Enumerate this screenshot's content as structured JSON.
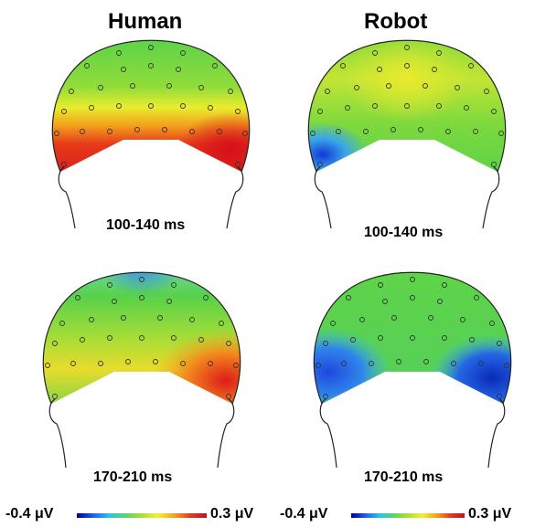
{
  "columns": [
    {
      "title": "Human"
    },
    {
      "title": "Robot"
    }
  ],
  "panels": [
    {
      "condition": "Human",
      "time_window": "100-140 ms",
      "pattern": "posterior-positive"
    },
    {
      "condition": "Robot",
      "time_window": "100-140 ms",
      "pattern": "left-negative"
    },
    {
      "condition": "Human",
      "time_window": "170-210 ms",
      "pattern": "right-positive-top-negative"
    },
    {
      "condition": "Robot",
      "time_window": "170-210 ms",
      "pattern": "bilateral-negative"
    }
  ],
  "colorbar": {
    "min_label": "-0.4 μV",
    "max_label": "0.3 μV",
    "colors": [
      "#00008b",
      "#1e5bff",
      "#21c7e8",
      "#56d66a",
      "#a9e033",
      "#f4f030",
      "#f6a21c",
      "#e8391b",
      "#c8101a"
    ]
  },
  "colors": {
    "green": "#57d24a",
    "yellow": "#f1ee2c",
    "orange": "#f38d1c",
    "red": "#e1221c",
    "blue": "#1f57e8",
    "darkblue": "#0b2ab8",
    "cyan": "#43c2e6"
  }
}
